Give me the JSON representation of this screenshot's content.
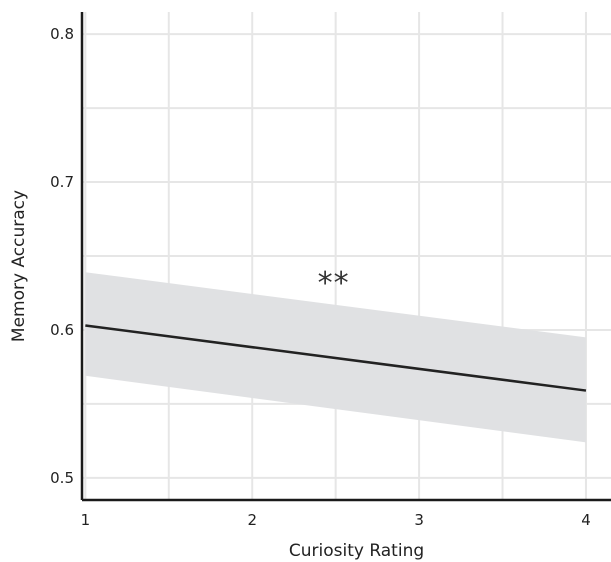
{
  "chart_data": {
    "type": "line",
    "title": "",
    "xlabel": "Curiosity Rating",
    "ylabel": "Memory Accuracy",
    "xlim": [
      0.98,
      4.15
    ],
    "ylim": [
      0.485,
      0.815
    ],
    "x_ticks": [
      1,
      2,
      3,
      4
    ],
    "x_tick_labels": [
      "1",
      "2",
      "3",
      "4"
    ],
    "y_ticks": [
      0.5,
      0.6,
      0.7,
      0.8
    ],
    "y_tick_labels": [
      "0.5",
      "0.6",
      "0.7",
      "0.8"
    ],
    "x_gridlines": [
      1,
      1.5,
      2,
      2.5,
      3,
      3.5,
      4
    ],
    "y_gridlines": [
      0.5,
      0.55,
      0.6,
      0.65,
      0.7,
      0.75,
      0.8
    ],
    "grid": true,
    "series": [
      {
        "x": [
          1,
          4
        ],
        "y": [
          0.603,
          0.559
        ],
        "ci_lower": [
          0.569,
          0.524
        ],
        "ci_upper": [
          0.639,
          0.595
        ],
        "color": "#222222",
        "ci_color": "#e0e1e3"
      }
    ],
    "annotations": [
      {
        "text": "**",
        "x": 2.5,
        "y": 0.637
      }
    ]
  }
}
